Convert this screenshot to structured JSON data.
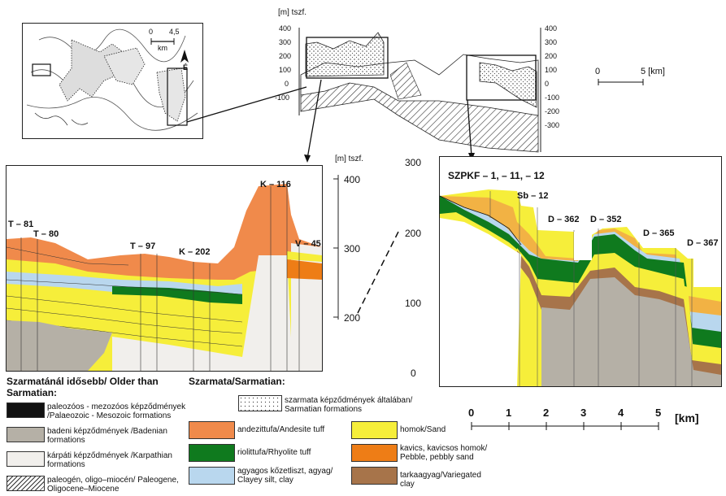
{
  "map": {
    "scale_left": "0",
    "scale_right": "4,5",
    "scale_unit": "km",
    "north": "É"
  },
  "top_section": {
    "unit_label": "[m] tszf.",
    "left_ticks": [
      "400",
      "300",
      "200",
      "100",
      "0",
      "-100"
    ],
    "right_ticks": [
      "400",
      "300",
      "200",
      "100",
      "0",
      "-100",
      "-200",
      "-300"
    ]
  },
  "scale_bar_top": {
    "left": "0",
    "right": "5 [km]"
  },
  "left_section": {
    "unit_label": "[m] tszf.",
    "ticks": [
      "400",
      "300",
      "200"
    ],
    "boreholes": [
      "T – 81",
      "T – 80",
      "T – 97",
      "K – 202",
      "K – 116",
      "V – 45"
    ]
  },
  "right_section": {
    "ticks": [
      "300",
      "200",
      "100",
      "0"
    ],
    "boreholes": [
      "SZPKF – 1, – 11, – 12",
      "Sb – 12",
      "D – 362",
      "D – 352",
      "D – 365",
      "D – 367"
    ]
  },
  "scale_bar_bottom": {
    "ticks": [
      "0",
      "1",
      "2",
      "3",
      "4",
      "5"
    ],
    "unit": "[km]"
  },
  "legend": {
    "older_header": "Szarmatánál idősebb/ Older than Sarmatian:",
    "sarm_header": "Szarmata/Sarmatian:",
    "older": [
      {
        "label": "paleozóos - mezozóos képződmények /Palaeozoic - Mesozoic formations",
        "color": "#111111"
      },
      {
        "label": "badeni képződmények /Badenian formations",
        "color": "#b5b0a6"
      },
      {
        "label": "kárpáti képződmények /Karpathian formations",
        "color": "#f1efec"
      },
      {
        "label": "paleogén, oligo–miocén/ Paleogene, Oligocene–Miocene",
        "color": "#ffffff"
      }
    ],
    "sarm_general": "szarmata képződmények általában/ Sarmatian formations",
    "sarm_left": [
      {
        "label": "andezittufa/Andesite tuff",
        "color": "#f08a4b"
      },
      {
        "label": "riolittufa/Rhyolite tuff",
        "color": "#0f7a1e"
      },
      {
        "label": "agyagos kőzetliszt, agyag/ Clayey silt, clay",
        "color": "#b9d7ee"
      }
    ],
    "sarm_right": [
      {
        "label": "homok/Sand",
        "color": "#f6ee3a"
      },
      {
        "label": "kavics, kavicsos homok/ Pebble, pebbly sand",
        "color": "#ee7d16"
      },
      {
        "label": "tarkaagyag/Variegated clay",
        "color": "#a7744a"
      }
    ]
  }
}
